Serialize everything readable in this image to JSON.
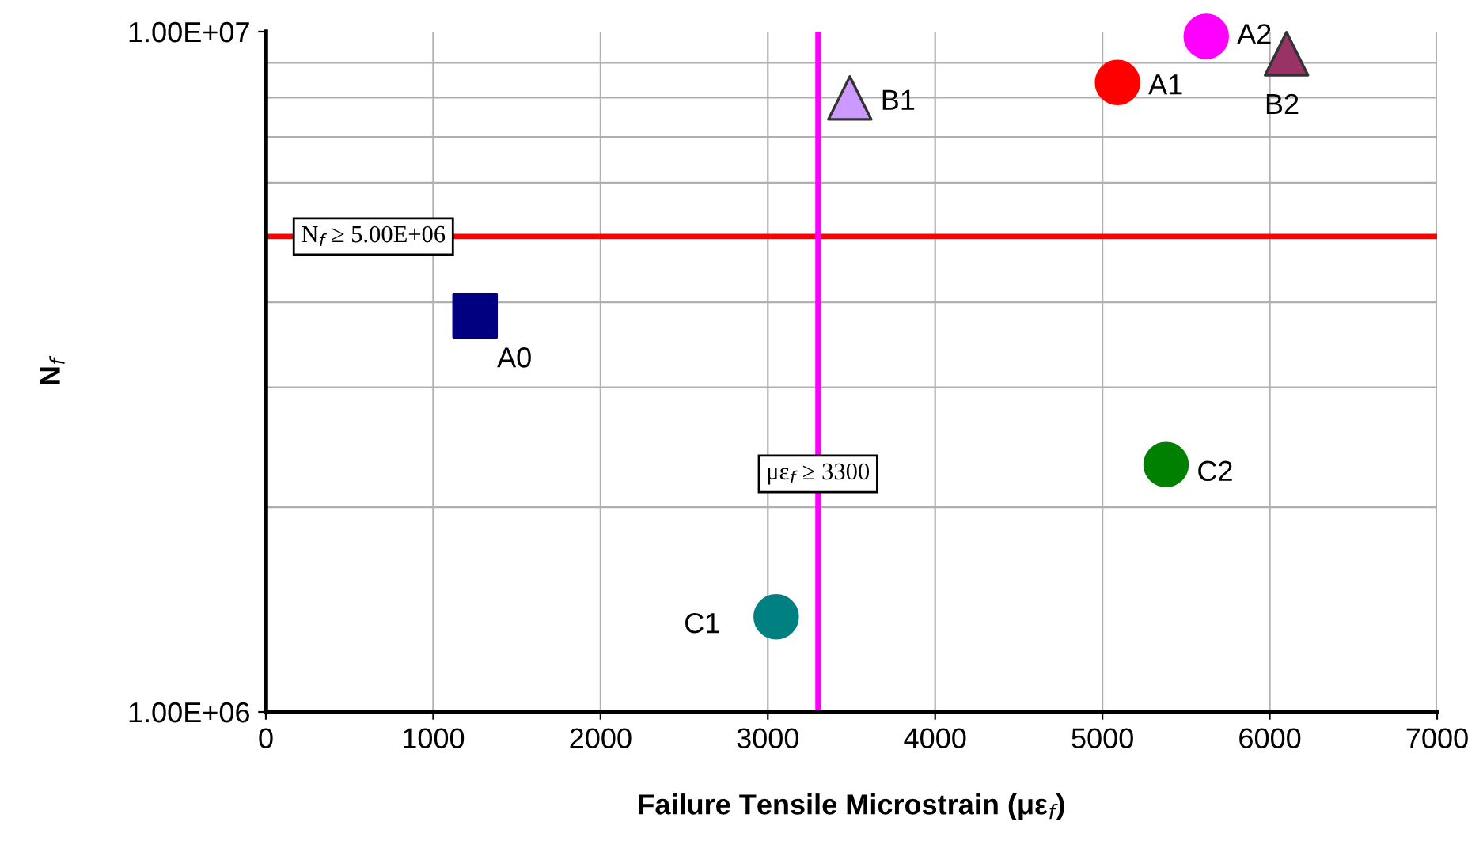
{
  "chart_data": {
    "type": "scatter",
    "xlabel": "Failure Tensile Microstrain (με$_{f}$)",
    "ylabel": "N$_{f}$",
    "xlim": [
      0,
      7000
    ],
    "xticks": [
      0,
      1000,
      2000,
      3000,
      4000,
      5000,
      6000,
      7000
    ],
    "ylim": [
      1000000,
      10000000
    ],
    "yticks": [
      {
        "value": 1000000,
        "label": "1.00E+06"
      },
      {
        "value": 10000000,
        "label": "1.00E+07"
      }
    ],
    "log": "y",
    "grid": true,
    "legend": false,
    "series": [
      {
        "name": "A0",
        "x": [
          1250
        ],
        "values": [
          3820000
        ],
        "color": "#000080",
        "marker": "square"
      },
      {
        "name": "A1",
        "x": [
          5090
        ],
        "values": [
          8420000
        ],
        "color": "#ff0000",
        "marker": "circle"
      },
      {
        "name": "A2",
        "x": [
          5620
        ],
        "values": [
          9840000
        ],
        "color": "#ff00ff",
        "marker": "circle"
      },
      {
        "name": "B1",
        "x": [
          3490
        ],
        "values": [
          7990000
        ],
        "color": "#cc99ff",
        "marker": "triangle"
      },
      {
        "name": "B2",
        "x": [
          6100
        ],
        "values": [
          9280000
        ],
        "color": "#993366",
        "marker": "triangle"
      },
      {
        "name": "C1",
        "x": [
          3050
        ],
        "values": [
          1380000
        ],
        "color": "#008080",
        "marker": "circle"
      },
      {
        "name": "C2",
        "x": [
          5380
        ],
        "values": [
          2310000
        ],
        "color": "#008000",
        "marker": "circle"
      }
    ],
    "ref_lines": [
      {
        "axis": "y",
        "value": 5000000,
        "label": "N$_{f}$ ≥ 5.00E+06",
        "color": "#ff0000"
      },
      {
        "axis": "x",
        "value": 3300,
        "label": "με$_{f}$ ≥ 3300",
        "color": "#ff00ff"
      }
    ]
  }
}
